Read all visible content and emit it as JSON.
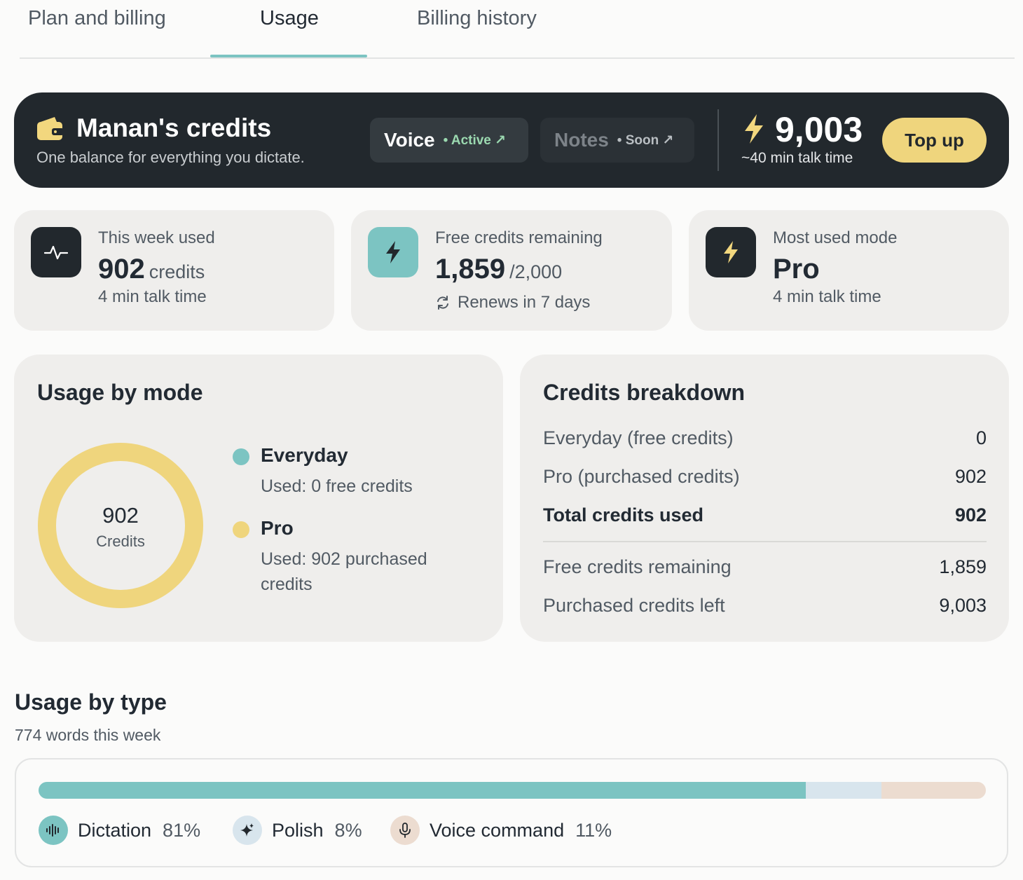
{
  "tabs": [
    {
      "label": "Plan and billing"
    },
    {
      "label": "Usage"
    },
    {
      "label": "Billing history"
    }
  ],
  "active_tab": "Usage",
  "banner": {
    "title": "Manan's credits",
    "subtitle": "One balance for everything you dictate.",
    "voice": {
      "name": "Voice",
      "status": "• Active ↗"
    },
    "notes": {
      "name": "Notes",
      "status": "• Soon ↗"
    },
    "balance": "9,003",
    "talk_time": "~40 min talk time",
    "topup_label": "Top up"
  },
  "stats": {
    "week": {
      "label": "This week used",
      "value": "902",
      "unit": "credits",
      "sub": "4 min talk time",
      "icon": "activity-icon"
    },
    "free": {
      "label": "Free credits remaining",
      "value": "1,859",
      "unit": "/2,000",
      "sub": "Renews in 7 days",
      "icon": "bolt-icon"
    },
    "mode": {
      "label": "Most used mode",
      "value": "Pro",
      "sub": "4 min talk time",
      "icon": "bolt-icon"
    }
  },
  "usage_by_mode": {
    "title": "Usage by mode",
    "total": "902",
    "total_label": "Credits",
    "modes": [
      {
        "name": "Everyday",
        "desc": "Used: 0 free credits",
        "value": 0,
        "color": "#7cc4c2"
      },
      {
        "name": "Pro",
        "desc": "Used: 902 purchased credits",
        "value": 902,
        "color": "#efd57d"
      }
    ]
  },
  "breakdown": {
    "title": "Credits breakdown",
    "rows": [
      {
        "label": "Everyday (free credits)",
        "value": "0"
      },
      {
        "label": "Pro (purchased credits)",
        "value": "902"
      },
      {
        "label": "Total credits used",
        "value": "902"
      },
      {
        "label": "Free credits remaining",
        "value": "1,859"
      },
      {
        "label": "Purchased credits left",
        "value": "9,003"
      }
    ]
  },
  "usage_by_type": {
    "title": "Usage by type",
    "subtitle": "774 words this week",
    "types": [
      {
        "name": "Dictation",
        "pct": "81%",
        "value": 81,
        "color": "#7cc4c2",
        "icon_bg": "#7cc4c2",
        "icon": "waveform-icon"
      },
      {
        "name": "Polish",
        "pct": "8%",
        "value": 8,
        "color": "#d8e5ed",
        "icon_bg": "#d8e5ed",
        "icon": "sparkle-icon"
      },
      {
        "name": "Voice command",
        "pct": "11%",
        "value": 11,
        "color": "#ecdcd0",
        "icon_bg": "#ecdcd0",
        "icon": "microphone-icon"
      }
    ]
  }
}
